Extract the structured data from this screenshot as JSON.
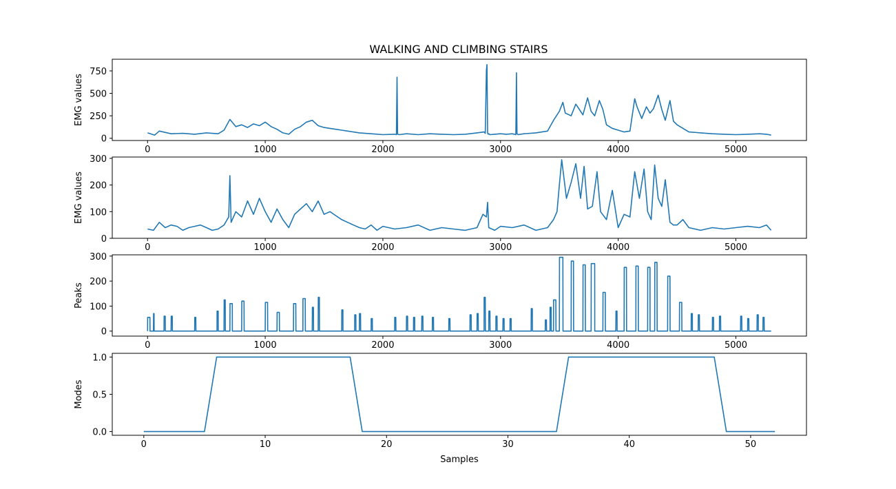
{
  "chart_data": {
    "title": "WALKING AND CLIMBING STAIRS",
    "line_color": "#1f77b4",
    "panels": [
      {
        "type": "line",
        "ylabel": "EMG values",
        "xlabel": "",
        "xlim": [
          -300,
          5600
        ],
        "ylim": [
          -25,
          880
        ],
        "xticks": [
          0,
          1000,
          2000,
          3000,
          4000,
          5000
        ],
        "yticks": [
          0,
          250,
          500,
          750
        ],
        "x": [
          0,
          60,
          100,
          200,
          300,
          400,
          500,
          600,
          650,
          700,
          750,
          800,
          850,
          900,
          950,
          1000,
          1050,
          1100,
          1150,
          1200,
          1250,
          1300,
          1350,
          1400,
          1450,
          1500,
          1550,
          1600,
          1650,
          1700,
          1800,
          1900,
          2000,
          2100,
          2115,
          2120,
          2125,
          2140,
          2200,
          2300,
          2400,
          2500,
          2600,
          2700,
          2800,
          2860,
          2870,
          2880,
          2885,
          2890,
          2895,
          2900,
          2910,
          2950,
          3000,
          3050,
          3100,
          3130,
          3135,
          3140,
          3150,
          3200,
          3300,
          3400,
          3450,
          3500,
          3530,
          3550,
          3600,
          3640,
          3670,
          3700,
          3740,
          3770,
          3800,
          3840,
          3870,
          3900,
          3950,
          4000,
          4050,
          4100,
          4140,
          4160,
          4200,
          4240,
          4270,
          4300,
          4340,
          4370,
          4400,
          4440,
          4470,
          4500,
          4600,
          4700,
          4800,
          4900,
          5000,
          5100,
          5200,
          5260,
          5300
        ],
        "values": [
          60,
          35,
          80,
          50,
          55,
          45,
          60,
          50,
          90,
          210,
          130,
          150,
          120,
          160,
          140,
          180,
          130,
          100,
          60,
          45,
          100,
          130,
          180,
          200,
          140,
          120,
          110,
          100,
          90,
          80,
          60,
          50,
          40,
          45,
          40,
          680,
          45,
          40,
          50,
          40,
          50,
          45,
          40,
          45,
          60,
          70,
          55,
          760,
          820,
          60,
          45,
          50,
          40,
          45,
          50,
          45,
          50,
          40,
          730,
          50,
          40,
          50,
          60,
          80,
          200,
          300,
          400,
          280,
          250,
          380,
          320,
          260,
          450,
          300,
          250,
          420,
          320,
          150,
          110,
          90,
          70,
          80,
          440,
          350,
          220,
          350,
          280,
          330,
          480,
          320,
          200,
          420,
          190,
          150,
          70,
          60,
          50,
          45,
          40,
          45,
          50,
          45,
          35
        ]
      },
      {
        "type": "line",
        "ylabel": "EMG values",
        "xlabel": "",
        "xlim": [
          -300,
          5600
        ],
        "ylim": [
          0,
          305
        ],
        "xticks": [
          0,
          1000,
          2000,
          3000,
          4000,
          5000
        ],
        "yticks": [
          0,
          100,
          200,
          300
        ],
        "x": [
          0,
          50,
          100,
          150,
          200,
          250,
          300,
          350,
          400,
          450,
          500,
          550,
          600,
          650,
          690,
          700,
          710,
          750,
          800,
          850,
          900,
          950,
          1000,
          1050,
          1100,
          1150,
          1200,
          1250,
          1300,
          1350,
          1400,
          1450,
          1500,
          1550,
          1600,
          1650,
          1700,
          1750,
          1800,
          1850,
          1900,
          1950,
          2000,
          2100,
          2200,
          2300,
          2400,
          2500,
          2600,
          2700,
          2800,
          2850,
          2880,
          2890,
          2900,
          2950,
          3000,
          3100,
          3200,
          3300,
          3400,
          3450,
          3480,
          3500,
          3520,
          3560,
          3600,
          3640,
          3680,
          3710,
          3740,
          3780,
          3820,
          3850,
          3900,
          3950,
          4000,
          4050,
          4100,
          4140,
          4180,
          4220,
          4250,
          4280,
          4310,
          4340,
          4370,
          4400,
          4440,
          4470,
          4500,
          4550,
          4600,
          4700,
          4800,
          4900,
          5000,
          5100,
          5200,
          5260,
          5300
        ],
        "values": [
          35,
          30,
          60,
          40,
          50,
          45,
          30,
          40,
          45,
          50,
          40,
          30,
          35,
          50,
          80,
          235,
          60,
          100,
          80,
          140,
          90,
          150,
          100,
          60,
          110,
          70,
          40,
          90,
          110,
          130,
          100,
          140,
          90,
          100,
          85,
          70,
          60,
          50,
          40,
          35,
          50,
          30,
          45,
          35,
          40,
          50,
          30,
          40,
          35,
          30,
          40,
          90,
          80,
          135,
          40,
          30,
          45,
          40,
          50,
          30,
          40,
          70,
          100,
          200,
          295,
          150,
          210,
          280,
          150,
          270,
          110,
          120,
          250,
          100,
          70,
          180,
          40,
          90,
          80,
          250,
          150,
          260,
          100,
          70,
          275,
          150,
          120,
          220,
          60,
          50,
          50,
          70,
          40,
          30,
          40,
          35,
          40,
          45,
          40,
          50,
          30
        ]
      },
      {
        "type": "line",
        "ylabel": "Peaks",
        "xlabel": "",
        "xlim": [
          -300,
          5600
        ],
        "ylim": [
          -20,
          305
        ],
        "xticks": [
          0,
          1000,
          2000,
          3000,
          4000,
          5000
        ],
        "yticks": [
          0,
          100,
          200,
          300
        ],
        "pulses": [
          [
            0,
            20,
            55
          ],
          [
            50,
            55,
            70
          ],
          [
            140,
            150,
            60
          ],
          [
            200,
            210,
            60
          ],
          [
            400,
            410,
            55
          ],
          [
            590,
            600,
            80
          ],
          [
            650,
            660,
            125
          ],
          [
            700,
            720,
            110
          ],
          [
            800,
            820,
            120
          ],
          [
            1000,
            1020,
            115
          ],
          [
            1100,
            1120,
            75
          ],
          [
            1240,
            1260,
            110
          ],
          [
            1320,
            1340,
            130
          ],
          [
            1400,
            1410,
            95
          ],
          [
            1450,
            1460,
            135
          ],
          [
            1650,
            1660,
            85
          ],
          [
            1760,
            1770,
            65
          ],
          [
            1800,
            1810,
            70
          ],
          [
            1900,
            1910,
            50
          ],
          [
            2100,
            2110,
            55
          ],
          [
            2200,
            2210,
            60
          ],
          [
            2260,
            2270,
            55
          ],
          [
            2330,
            2340,
            60
          ],
          [
            2420,
            2430,
            55
          ],
          [
            2560,
            2570,
            50
          ],
          [
            2740,
            2750,
            65
          ],
          [
            2800,
            2810,
            70
          ],
          [
            2860,
            2870,
            135
          ],
          [
            2900,
            2910,
            80
          ],
          [
            2960,
            2970,
            60
          ],
          [
            3020,
            3030,
            50
          ],
          [
            3080,
            3090,
            50
          ],
          [
            3260,
            3270,
            90
          ],
          [
            3380,
            3390,
            45
          ],
          [
            3420,
            3430,
            95
          ],
          [
            3450,
            3470,
            125
          ],
          [
            3500,
            3530,
            295
          ],
          [
            3600,
            3620,
            280
          ],
          [
            3700,
            3720,
            265
          ],
          [
            3770,
            3800,
            270
          ],
          [
            3870,
            3890,
            155
          ],
          [
            3980,
            3990,
            80
          ],
          [
            4050,
            4070,
            255
          ],
          [
            4150,
            4170,
            260
          ],
          [
            4250,
            4270,
            255
          ],
          [
            4310,
            4330,
            275
          ],
          [
            4420,
            4440,
            220
          ],
          [
            4520,
            4540,
            115
          ],
          [
            4620,
            4630,
            70
          ],
          [
            4680,
            4690,
            65
          ],
          [
            4800,
            4810,
            55
          ],
          [
            4860,
            4870,
            60
          ],
          [
            5040,
            5050,
            60
          ],
          [
            5100,
            5110,
            50
          ],
          [
            5180,
            5190,
            65
          ],
          [
            5230,
            5240,
            55
          ]
        ]
      },
      {
        "type": "line",
        "ylabel": "Modes",
        "xlabel": "Samples",
        "xlim": [
          -2.6,
          54.6
        ],
        "ylim": [
          -0.05,
          1.05
        ],
        "xticks": [
          0,
          10,
          20,
          30,
          40,
          50
        ],
        "ytick_labels": [
          "0.0",
          "0.5",
          "1.0"
        ],
        "yticks": [
          0,
          0.5,
          1.0
        ],
        "x": [
          0,
          5,
          6,
          17,
          18,
          34,
          35,
          47,
          48,
          52
        ],
        "values": [
          0,
          0,
          1,
          1,
          0,
          0,
          1,
          1,
          0,
          0
        ]
      }
    ]
  }
}
